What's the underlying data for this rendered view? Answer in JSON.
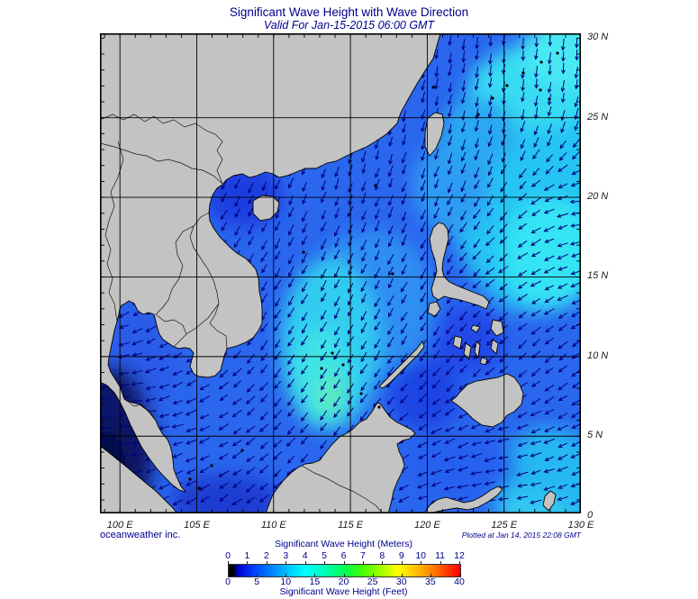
{
  "title": "Significant Wave Height with Wave Direction",
  "subtitle": "Valid For Jan-15-2015 06:00 GMT",
  "credit_left": "oceanweather inc.",
  "credit_right": "Plotted at Jan 14, 2015 22:08 GMT",
  "map": {
    "lon_labels": [
      "100 E",
      "105 E",
      "110 E",
      "115 E",
      "120 E",
      "125 E",
      "130 E"
    ],
    "lat_labels": [
      "30 N",
      "25 N",
      "20 N",
      "15 N",
      "10 N",
      "5 N",
      "0"
    ],
    "lon_range": [
      98.7,
      130.0
    ],
    "lat_range": [
      0.15,
      30.3
    ],
    "grid_lon": [
      100,
      105,
      110,
      115,
      120,
      125
    ],
    "grid_lat": [
      5,
      10,
      15,
      20,
      25
    ],
    "land_color": "#c3c3c3",
    "coast_color": "#000000",
    "grid_color": "#000000",
    "arrow_color": "#00007d",
    "ocean_base_color": "#2a66ee"
  },
  "wave_direction_field": {
    "lon": [
      100,
      105,
      110,
      115,
      120,
      125,
      130
    ],
    "lat": [
      30,
      25,
      20,
      15,
      10,
      5,
      0
    ],
    "bearing_deg_toward": [
      [
        180,
        180,
        185,
        190,
        190,
        185,
        180
      ],
      [
        200,
        200,
        200,
        195,
        195,
        190,
        195
      ],
      [
        225,
        210,
        205,
        200,
        200,
        215,
        265
      ],
      [
        230,
        215,
        210,
        205,
        210,
        235,
        250
      ],
      [
        260,
        235,
        215,
        210,
        215,
        225,
        230
      ],
      [
        270,
        250,
        225,
        215,
        240,
        255,
        240
      ],
      [
        240,
        235,
        230,
        228,
        255,
        265,
        250
      ]
    ]
  },
  "colorbar": {
    "title_meters": "Significant Wave Height (Meters)",
    "title_feet": "Significant Wave Height (Feet)",
    "meters_ticks": [
      "0",
      "1",
      "2",
      "3",
      "4",
      "5",
      "6",
      "7",
      "8",
      "9",
      "10",
      "11",
      "12"
    ],
    "feet_ticks": [
      "0",
      "5",
      "10",
      "15",
      "20",
      "25",
      "30",
      "35",
      "40"
    ],
    "gradient_stops": [
      [
        "0%",
        "#000000"
      ],
      [
        "2%",
        "#000000"
      ],
      [
        "4%",
        "#0000cd"
      ],
      [
        "11%",
        "#0040ff"
      ],
      [
        "20%",
        "#0090ff"
      ],
      [
        "27%",
        "#00d0ff"
      ],
      [
        "33%",
        "#00ffff"
      ],
      [
        "42%",
        "#00ffae"
      ],
      [
        "50%",
        "#00ff55"
      ],
      [
        "58%",
        "#45ff00"
      ],
      [
        "66%",
        "#a4ff00"
      ],
      [
        "73%",
        "#ffff00"
      ],
      [
        "81%",
        "#ffbf00"
      ],
      [
        "88%",
        "#ff7f00"
      ],
      [
        "95%",
        "#ff3300"
      ],
      [
        "100%",
        "#ff0000"
      ]
    ]
  }
}
